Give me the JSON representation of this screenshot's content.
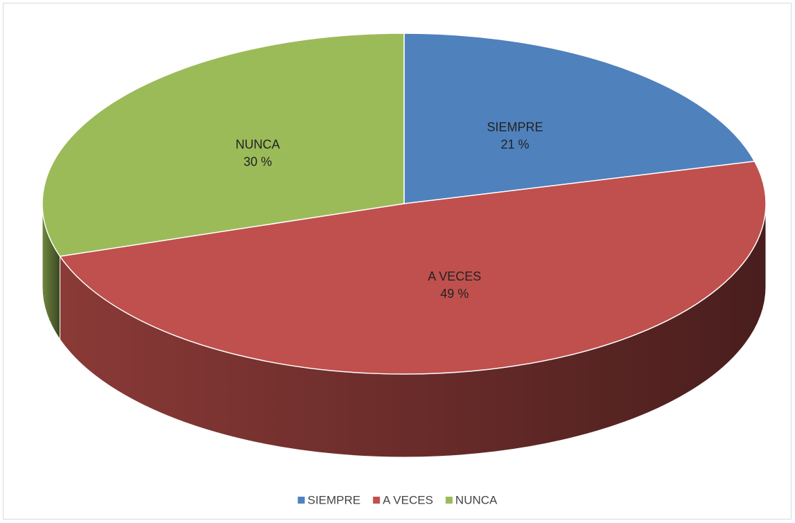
{
  "chart_data": {
    "type": "pie",
    "categories": [
      "SIEMPRE",
      "A VECES",
      "NUNCA"
    ],
    "values": [
      21,
      49,
      30
    ],
    "value_labels": [
      "21 %",
      "49 %",
      "30 %"
    ],
    "colors": [
      "#4f81bd",
      "#c0504d",
      "#9bbb59"
    ],
    "legend": "bottom"
  }
}
